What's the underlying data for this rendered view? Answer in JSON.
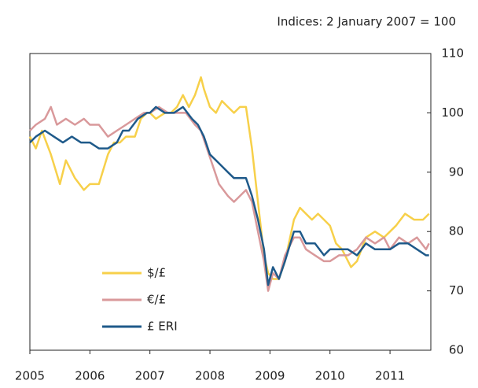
{
  "chart_data": {
    "type": "line",
    "subtitle": "Indices:  2 January 2007 = 100",
    "xlim": [
      2005,
      2011.68
    ],
    "xticks": [
      2005,
      2006,
      2007,
      2008,
      2009,
      2010,
      2011
    ],
    "ylim": [
      60,
      110
    ],
    "yticks": [
      60,
      70,
      80,
      90,
      100,
      110
    ],
    "y_axis_side": "right",
    "grid": false,
    "legend": "lower left",
    "series": [
      {
        "name": "$/£",
        "color": "#f7d04a",
        "x": [
          2005.0,
          2005.1,
          2005.2,
          2005.35,
          2005.5,
          2005.6,
          2005.75,
          2005.9,
          2006.0,
          2006.15,
          2006.3,
          2006.4,
          2006.5,
          2006.6,
          2006.75,
          2006.85,
          2006.95,
          2007.0,
          2007.1,
          2007.25,
          2007.35,
          2007.45,
          2007.55,
          2007.65,
          2007.75,
          2007.85,
          2007.9,
          2008.0,
          2008.1,
          2008.2,
          2008.3,
          2008.4,
          2008.5,
          2008.6,
          2008.7,
          2008.8,
          2008.9,
          2008.97,
          2009.05,
          2009.15,
          2009.25,
          2009.4,
          2009.5,
          2009.6,
          2009.7,
          2009.8,
          2009.9,
          2010.0,
          2010.1,
          2010.2,
          2010.35,
          2010.45,
          2010.6,
          2010.75,
          2010.9,
          2011.0,
          2011.1,
          2011.25,
          2011.4,
          2011.55,
          2011.65
        ],
        "values": [
          96,
          94,
          97,
          93,
          88,
          92,
          89,
          87,
          88,
          88,
          93,
          95,
          95,
          96,
          96,
          99,
          100,
          100,
          99,
          100,
          100,
          101,
          103,
          101,
          103,
          106,
          104,
          101,
          100,
          102,
          101,
          100,
          101,
          101,
          94,
          85,
          76,
          73,
          72,
          72,
          75,
          82,
          84,
          83,
          82,
          83,
          82,
          81,
          78,
          77,
          74,
          75,
          79,
          80,
          79,
          80,
          81,
          83,
          82,
          82,
          83
        ]
      },
      {
        "name": "€/£",
        "color": "#d9999b",
        "x": [
          2005.0,
          2005.1,
          2005.25,
          2005.35,
          2005.45,
          2005.6,
          2005.75,
          2005.9,
          2006.0,
          2006.15,
          2006.3,
          2006.45,
          2006.6,
          2006.75,
          2006.9,
          2007.0,
          2007.15,
          2007.3,
          2007.45,
          2007.6,
          2007.75,
          2007.85,
          2007.95,
          2008.05,
          2008.15,
          2008.3,
          2008.4,
          2008.5,
          2008.6,
          2008.7,
          2008.8,
          2008.9,
          2008.97,
          2009.05,
          2009.15,
          2009.25,
          2009.4,
          2009.5,
          2009.6,
          2009.75,
          2009.9,
          2010.0,
          2010.15,
          2010.3,
          2010.45,
          2010.6,
          2010.75,
          2010.9,
          2011.0,
          2011.15,
          2011.3,
          2011.45,
          2011.6,
          2011.65
        ],
        "values": [
          97,
          98,
          99,
          101,
          98,
          99,
          98,
          99,
          98,
          98,
          96,
          97,
          98,
          99,
          100,
          100,
          101,
          100,
          100,
          100,
          98,
          97,
          94,
          91,
          88,
          86,
          85,
          86,
          87,
          85,
          80,
          75,
          70,
          73,
          72,
          76,
          79,
          79,
          77,
          76,
          75,
          75,
          76,
          76,
          77,
          79,
          78,
          79,
          77,
          79,
          78,
          79,
          77,
          78
        ]
      },
      {
        "name": "£ ERI",
        "color": "#1f5a8a",
        "x": [
          2005.0,
          2005.1,
          2005.25,
          2005.4,
          2005.55,
          2005.7,
          2005.85,
          2006.0,
          2006.15,
          2006.3,
          2006.45,
          2006.55,
          2006.65,
          2006.8,
          2006.95,
          2007.0,
          2007.1,
          2007.25,
          2007.4,
          2007.55,
          2007.7,
          2007.8,
          2007.9,
          2008.0,
          2008.1,
          2008.2,
          2008.3,
          2008.4,
          2008.5,
          2008.6,
          2008.7,
          2008.8,
          2008.9,
          2008.97,
          2009.05,
          2009.15,
          2009.25,
          2009.4,
          2009.5,
          2009.6,
          2009.75,
          2009.9,
          2010.0,
          2010.15,
          2010.3,
          2010.45,
          2010.6,
          2010.75,
          2010.9,
          2011.0,
          2011.15,
          2011.3,
          2011.45,
          2011.6,
          2011.65
        ],
        "values": [
          95,
          96,
          97,
          96,
          95,
          96,
          95,
          95,
          94,
          94,
          95,
          97,
          97,
          99,
          100,
          100,
          101,
          100,
          100,
          101,
          99,
          98,
          96,
          93,
          92,
          91,
          90,
          89,
          89,
          89,
          86,
          82,
          77,
          71,
          74,
          72,
          75,
          80,
          80,
          78,
          78,
          76,
          77,
          77,
          77,
          76,
          78,
          77,
          77,
          77,
          78,
          78,
          77,
          76,
          76
        ]
      }
    ]
  }
}
